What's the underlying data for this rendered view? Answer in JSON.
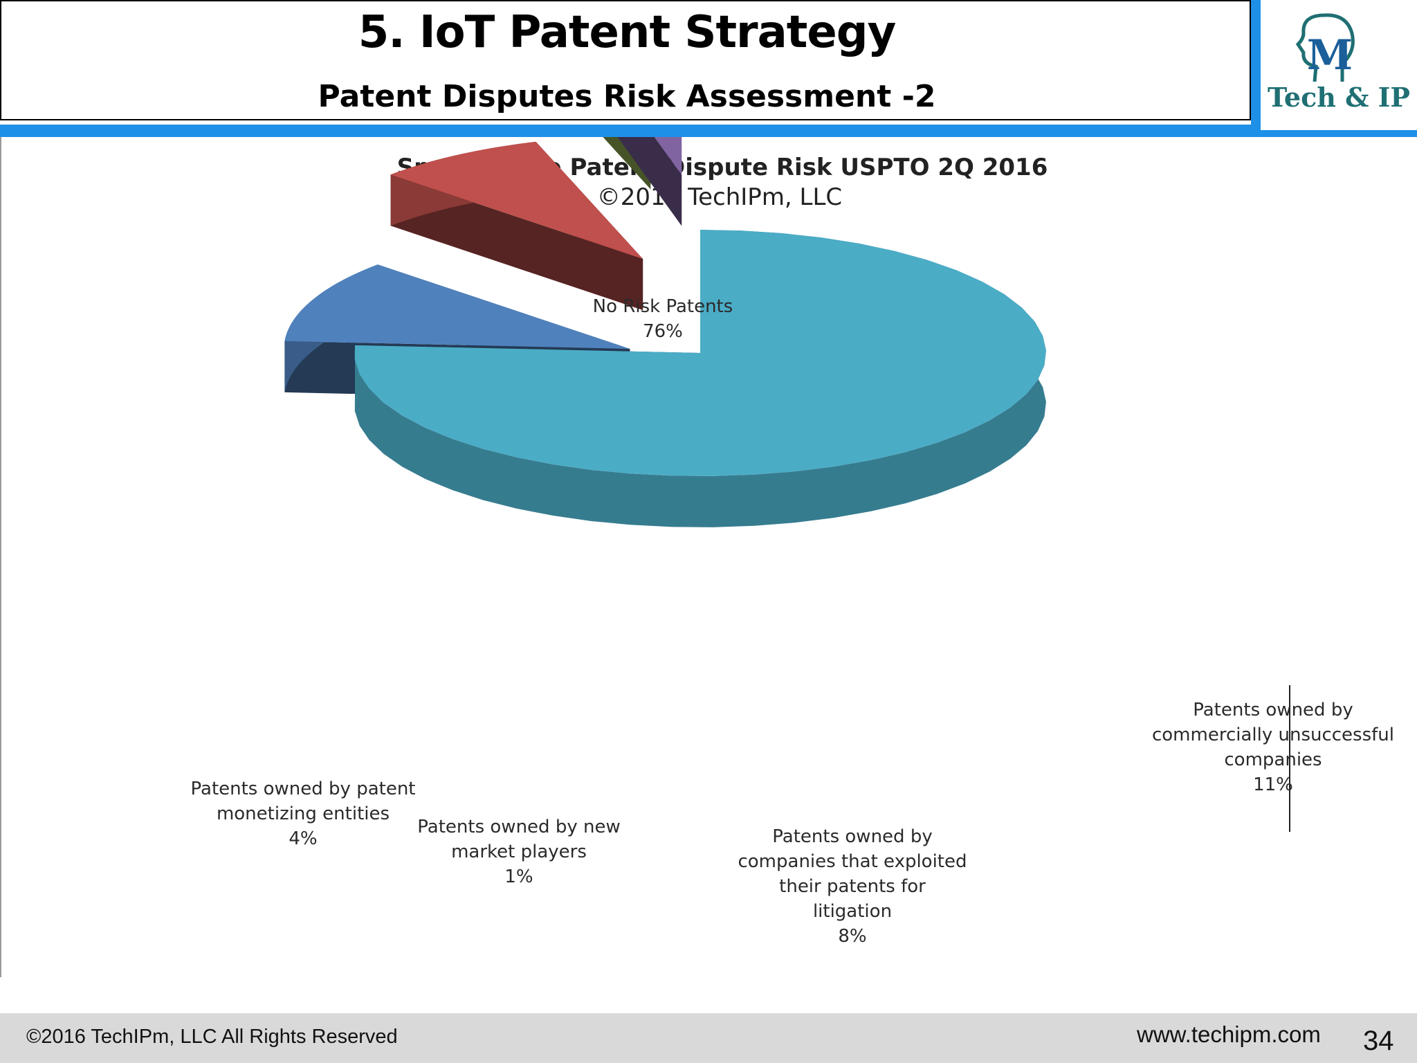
{
  "header": {
    "title": "5. IoT Patent Strategy",
    "subtitle": "Patent Disputes Risk Assessment -2"
  },
  "logo": {
    "mark": "M",
    "text": "Tech & IP"
  },
  "chart_data": {
    "type": "pie",
    "style": "3d-exploded",
    "title": "Smart Home Patent Dispute Risk USPTO 2Q 2016",
    "subtitle": "©2016 TechIPm,  LLC",
    "slices": [
      {
        "label": [
          "No Risk Patents"
        ],
        "value_label": "76%",
        "value": 76,
        "color": "#4bacc6"
      },
      {
        "label": [
          "Patents owned by",
          "commercially unsuccessful",
          "companies"
        ],
        "value_label": "11%",
        "value": 11,
        "color": "#4f81bd"
      },
      {
        "label": [
          "Patents owned by",
          "companies that exploited",
          "their patents for",
          "litigation"
        ],
        "value_label": "8%",
        "value": 8,
        "color": "#c0504d"
      },
      {
        "label": [
          "Patents owned by new",
          "market players"
        ],
        "value_label": "1%",
        "value": 1,
        "color": "#9bbb59"
      },
      {
        "label": [
          "Patents owned by patent",
          "monetizing entities"
        ],
        "value_label": "4%",
        "value": 4,
        "color": "#8064a2"
      }
    ]
  },
  "footer": {
    "copyright": "©2016 TechIPm, LLC All Rights Reserved",
    "url": "www.techipm.com",
    "page": "34"
  }
}
